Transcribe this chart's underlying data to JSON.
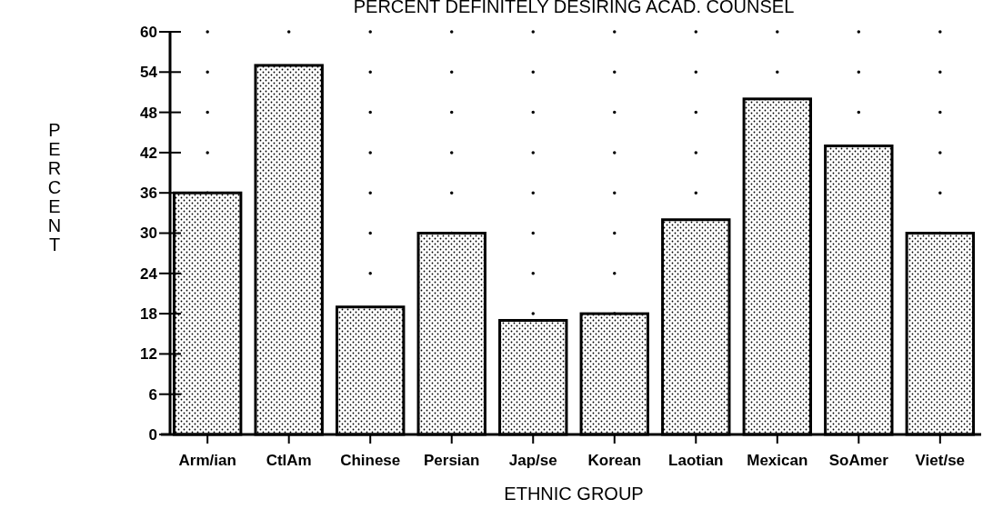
{
  "chart_data": {
    "type": "bar",
    "title": "PERCENT DEFINITELY DESIRING ACAD. COUNSEL",
    "xlabel": "ETHNIC GROUP",
    "ylabel": "PERCENT",
    "categories": [
      "Arm/ian",
      "CtlAm",
      "Chinese",
      "Persian",
      "Jap/se",
      "Korean",
      "Laotian",
      "Mexican",
      "SoAmer",
      "Viet/se"
    ],
    "values": [
      36,
      55,
      19,
      30,
      17,
      18,
      32,
      50,
      43,
      30
    ],
    "color": "#000000",
    "ylim": [
      0,
      60
    ],
    "yticks": [
      0,
      6,
      12,
      18,
      24,
      30,
      36,
      42,
      48,
      54,
      60
    ],
    "grid": "y"
  }
}
